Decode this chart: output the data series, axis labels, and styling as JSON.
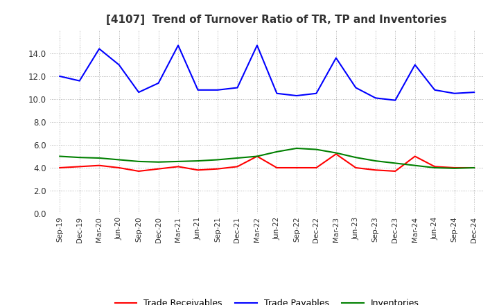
{
  "title": "[4107]  Trend of Turnover Ratio of TR, TP and Inventories",
  "x_labels": [
    "Sep-19",
    "Dec-19",
    "Mar-20",
    "Jun-20",
    "Sep-20",
    "Dec-20",
    "Mar-21",
    "Jun-21",
    "Sep-21",
    "Dec-21",
    "Mar-22",
    "Jun-22",
    "Sep-22",
    "Dec-22",
    "Mar-23",
    "Jun-23",
    "Sep-23",
    "Dec-23",
    "Mar-24",
    "Jun-24",
    "Sep-24",
    "Dec-24"
  ],
  "trade_receivables": [
    4.0,
    4.1,
    4.2,
    4.0,
    3.7,
    3.9,
    4.1,
    3.8,
    3.9,
    4.1,
    5.0,
    4.0,
    4.0,
    4.0,
    5.2,
    4.0,
    3.8,
    3.7,
    5.0,
    4.1,
    4.0,
    4.0
  ],
  "trade_payables": [
    12.0,
    11.6,
    14.4,
    13.0,
    10.6,
    11.4,
    14.7,
    10.8,
    10.8,
    11.0,
    14.7,
    10.5,
    10.3,
    10.5,
    13.6,
    11.0,
    10.1,
    9.9,
    13.0,
    10.8,
    10.5,
    10.6
  ],
  "inventories": [
    5.0,
    4.9,
    4.85,
    4.7,
    4.55,
    4.5,
    4.55,
    4.6,
    4.7,
    4.85,
    5.0,
    5.4,
    5.7,
    5.6,
    5.3,
    4.9,
    4.6,
    4.4,
    4.2,
    4.0,
    3.95,
    4.0
  ],
  "tr_color": "#ff0000",
  "tp_color": "#0000ff",
  "inv_color": "#008000",
  "ylim": [
    0.0,
    16.0
  ],
  "yticks": [
    0.0,
    2.0,
    4.0,
    6.0,
    8.0,
    10.0,
    12.0,
    14.0
  ],
  "legend_labels": [
    "Trade Receivables",
    "Trade Payables",
    "Inventories"
  ],
  "background_color": "#ffffff",
  "grid_color": "#b0b0b0"
}
